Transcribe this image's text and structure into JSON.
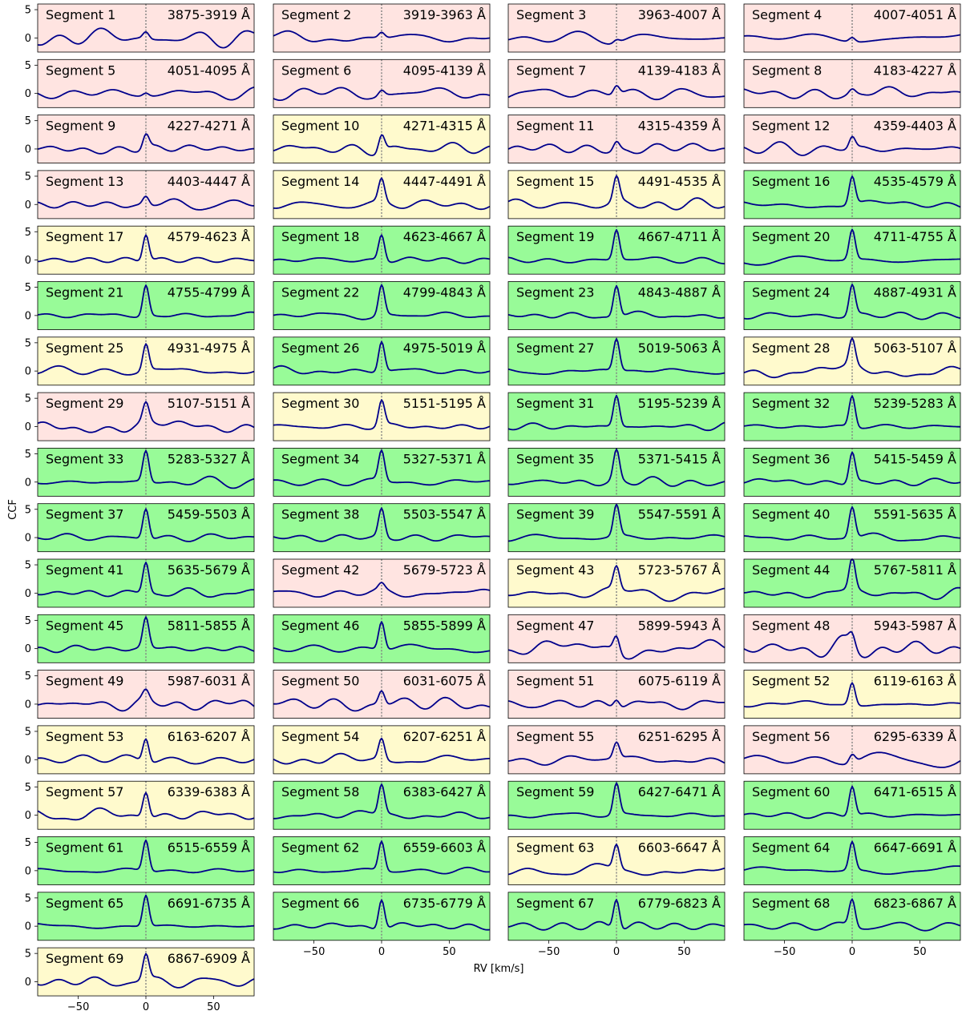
{
  "figure": {
    "xlabel": "RV [km/s]",
    "ylabel": "CCF"
  },
  "colors": {
    "line": "#00008b",
    "zero_line": "#808080",
    "good": "#98fb98",
    "marginal": "#fffacd",
    "poor": "#ffe4e1"
  },
  "chart_data": {
    "type": "line",
    "title": "",
    "xlabel": "RV [km/s]",
    "ylabel": "CCF",
    "xlim": [
      -80,
      80
    ],
    "ylim": [
      -2.5,
      6
    ],
    "xticks": [
      -50,
      0,
      50
    ],
    "yticks": [
      0,
      5
    ],
    "xtick_labels": [
      "−50",
      "0",
      "50"
    ],
    "ytick_labels": [
      "0",
      "5"
    ],
    "reference_line_x": 0,
    "grid": false,
    "legend": "none",
    "segments": [
      {
        "name": "Segment 1",
        "range": "3875-3919 Å",
        "quality": "poor",
        "peak": 1.2,
        "noise": 1.5
      },
      {
        "name": "Segment 2",
        "range": "3919-3963 Å",
        "quality": "poor",
        "peak": 1.0,
        "noise": 1.0
      },
      {
        "name": "Segment 3",
        "range": "3963-4007 Å",
        "quality": "poor",
        "peak": 0.6,
        "noise": 1.0
      },
      {
        "name": "Segment 4",
        "range": "4007-4051 Å",
        "quality": "poor",
        "peak": 0.8,
        "noise": 0.9
      },
      {
        "name": "Segment 5",
        "range": "4051-4095 Å",
        "quality": "poor",
        "peak": 0.6,
        "noise": 1.1
      },
      {
        "name": "Segment 6",
        "range": "4095-4139 Å",
        "quality": "poor",
        "peak": 1.0,
        "noise": 1.0
      },
      {
        "name": "Segment 7",
        "range": "4139-4183 Å",
        "quality": "poor",
        "peak": 1.6,
        "noise": 1.2
      },
      {
        "name": "Segment 8",
        "range": "4183-4227 Å",
        "quality": "poor",
        "peak": 0.8,
        "noise": 1.0
      },
      {
        "name": "Segment 9",
        "range": "4227-4271 Å",
        "quality": "poor",
        "peak": 2.5,
        "noise": 1.0
      },
      {
        "name": "Segment 10",
        "range": "4271-4315 Å",
        "quality": "marginal",
        "peak": 3.0,
        "noise": 1.0
      },
      {
        "name": "Segment 11",
        "range": "4315-4359 Å",
        "quality": "poor",
        "peak": 1.5,
        "noise": 1.0
      },
      {
        "name": "Segment 12",
        "range": "4359-4403 Å",
        "quality": "poor",
        "peak": 2.0,
        "noise": 0.9
      },
      {
        "name": "Segment 13",
        "range": "4403-4447 Å",
        "quality": "poor",
        "peak": 1.5,
        "noise": 0.9
      },
      {
        "name": "Segment 14",
        "range": "4447-4491 Å",
        "quality": "marginal",
        "peak": 4.0,
        "noise": 0.9
      },
      {
        "name": "Segment 15",
        "range": "4491-4535 Å",
        "quality": "marginal",
        "peak": 4.3,
        "noise": 1.0
      },
      {
        "name": "Segment 16",
        "range": "4535-4579 Å",
        "quality": "good",
        "peak": 5.0,
        "noise": 0.8
      },
      {
        "name": "Segment 17",
        "range": "4579-4623 Å",
        "quality": "marginal",
        "peak": 4.8,
        "noise": 0.7
      },
      {
        "name": "Segment 18",
        "range": "4623-4667 Å",
        "quality": "good",
        "peak": 4.6,
        "noise": 0.6
      },
      {
        "name": "Segment 19",
        "range": "4667-4711 Å",
        "quality": "good",
        "peak": 5.3,
        "noise": 0.6
      },
      {
        "name": "Segment 20",
        "range": "4711-4755 Å",
        "quality": "good",
        "peak": 5.3,
        "noise": 0.8
      },
      {
        "name": "Segment 21",
        "range": "4755-4799 Å",
        "quality": "good",
        "peak": 5.5,
        "noise": 0.7
      },
      {
        "name": "Segment 22",
        "range": "4799-4843 Å",
        "quality": "good",
        "peak": 5.3,
        "noise": 0.6
      },
      {
        "name": "Segment 23",
        "range": "4843-4887 Å",
        "quality": "good",
        "peak": 5.5,
        "noise": 0.6
      },
      {
        "name": "Segment 24",
        "range": "4887-4931 Å",
        "quality": "good",
        "peak": 5.4,
        "noise": 0.7
      },
      {
        "name": "Segment 25",
        "range": "4931-4975 Å",
        "quality": "marginal",
        "peak": 4.7,
        "noise": 1.0
      },
      {
        "name": "Segment 26",
        "range": "4975-5019 Å",
        "quality": "good",
        "peak": 5.4,
        "noise": 0.8
      },
      {
        "name": "Segment 27",
        "range": "5019-5063 Å",
        "quality": "good",
        "peak": 5.6,
        "noise": 0.6
      },
      {
        "name": "Segment 28",
        "range": "5063-5107 Å",
        "quality": "marginal",
        "peak": 4.5,
        "noise": 1.1
      },
      {
        "name": "Segment 29",
        "range": "5107-5151 Å",
        "quality": "poor",
        "peak": 3.2,
        "noise": 1.0
      },
      {
        "name": "Segment 30",
        "range": "5151-5195 Å",
        "quality": "marginal",
        "peak": 4.5,
        "noise": 0.8
      },
      {
        "name": "Segment 31",
        "range": "5195-5239 Å",
        "quality": "good",
        "peak": 5.5,
        "noise": 0.7
      },
      {
        "name": "Segment 32",
        "range": "5239-5283 Å",
        "quality": "good",
        "peak": 5.5,
        "noise": 0.6
      },
      {
        "name": "Segment 33",
        "range": "5283-5327 Å",
        "quality": "good",
        "peak": 5.5,
        "noise": 0.8
      },
      {
        "name": "Segment 34",
        "range": "5327-5371 Å",
        "quality": "good",
        "peak": 5.3,
        "noise": 0.7
      },
      {
        "name": "Segment 35",
        "range": "5371-5415 Å",
        "quality": "good",
        "peak": 5.3,
        "noise": 0.8
      },
      {
        "name": "Segment 36",
        "range": "5415-5459 Å",
        "quality": "good",
        "peak": 5.4,
        "noise": 0.7
      },
      {
        "name": "Segment 37",
        "range": "5459-5503 Å",
        "quality": "good",
        "peak": 5.4,
        "noise": 0.6
      },
      {
        "name": "Segment 38",
        "range": "5503-5547 Å",
        "quality": "good",
        "peak": 5.0,
        "noise": 0.6
      },
      {
        "name": "Segment 39",
        "range": "5547-5591 Å",
        "quality": "good",
        "peak": 5.5,
        "noise": 0.7
      },
      {
        "name": "Segment 40",
        "range": "5591-5635 Å",
        "quality": "good",
        "peak": 5.5,
        "noise": 0.6
      },
      {
        "name": "Segment 41",
        "range": "5635-5679 Å",
        "quality": "good",
        "peak": 5.5,
        "noise": 0.8
      },
      {
        "name": "Segment 42",
        "range": "5679-5723 Å",
        "quality": "poor",
        "peak": 1.0,
        "noise": 1.2
      },
      {
        "name": "Segment 43",
        "range": "5723-5767 Å",
        "quality": "marginal",
        "peak": 4.0,
        "noise": 1.1
      },
      {
        "name": "Segment 44",
        "range": "5767-5811 Å",
        "quality": "good",
        "peak": 5.5,
        "noise": 1.0
      },
      {
        "name": "Segment 45",
        "range": "5811-5855 Å",
        "quality": "good",
        "peak": 5.3,
        "noise": 0.6
      },
      {
        "name": "Segment 46",
        "range": "5855-5899 Å",
        "quality": "good",
        "peak": 5.0,
        "noise": 0.8
      },
      {
        "name": "Segment 47",
        "range": "5899-5943 Å",
        "quality": "poor",
        "peak": 2.8,
        "noise": 1.3
      },
      {
        "name": "Segment 48",
        "range": "5943-5987 Å",
        "quality": "poor",
        "peak": 2.0,
        "noise": 1.5
      },
      {
        "name": "Segment 49",
        "range": "5987-6031 Å",
        "quality": "poor",
        "peak": 1.5,
        "noise": 1.3
      },
      {
        "name": "Segment 50",
        "range": "6031-6075 Å",
        "quality": "poor",
        "peak": 2.5,
        "noise": 1.2
      },
      {
        "name": "Segment 51",
        "range": "6075-6119 Å",
        "quality": "poor",
        "peak": 1.5,
        "noise": 1.0
      },
      {
        "name": "Segment 52",
        "range": "6119-6163 Å",
        "quality": "marginal",
        "peak": 4.0,
        "noise": 0.5
      },
      {
        "name": "Segment 53",
        "range": "6163-6207 Å",
        "quality": "marginal",
        "peak": 4.2,
        "noise": 0.9
      },
      {
        "name": "Segment 54",
        "range": "6207-6251 Å",
        "quality": "marginal",
        "peak": 3.7,
        "noise": 0.9
      },
      {
        "name": "Segment 55",
        "range": "6251-6295 Å",
        "quality": "poor",
        "peak": 2.8,
        "noise": 1.3
      },
      {
        "name": "Segment 56",
        "range": "6295-6339 Å",
        "quality": "poor",
        "peak": 1.5,
        "noise": 1.3
      },
      {
        "name": "Segment 57",
        "range": "6339-6383 Å",
        "quality": "marginal",
        "peak": 4.5,
        "noise": 1.0
      },
      {
        "name": "Segment 58",
        "range": "6383-6427 Å",
        "quality": "good",
        "peak": 5.2,
        "noise": 0.8
      },
      {
        "name": "Segment 59",
        "range": "6427-6471 Å",
        "quality": "good",
        "peak": 5.5,
        "noise": 0.6
      },
      {
        "name": "Segment 60",
        "range": "6471-6515 Å",
        "quality": "good",
        "peak": 5.3,
        "noise": 0.5
      },
      {
        "name": "Segment 61",
        "range": "6515-6559 Å",
        "quality": "good",
        "peak": 5.5,
        "noise": 0.5
      },
      {
        "name": "Segment 62",
        "range": "6559-6603 Å",
        "quality": "good",
        "peak": 5.2,
        "noise": 0.6
      },
      {
        "name": "Segment 63",
        "range": "6603-6647 Å",
        "quality": "marginal",
        "peak": 4.3,
        "noise": 1.0
      },
      {
        "name": "Segment 64",
        "range": "6647-6691 Å",
        "quality": "good",
        "peak": 5.0,
        "noise": 0.6
      },
      {
        "name": "Segment 65",
        "range": "6691-6735 Å",
        "quality": "good",
        "peak": 5.5,
        "noise": 0.5
      },
      {
        "name": "Segment 66",
        "range": "6735-6779 Å",
        "quality": "good",
        "peak": 5.4,
        "noise": 0.6
      },
      {
        "name": "Segment 67",
        "range": "6779-6823 Å",
        "quality": "good",
        "peak": 5.5,
        "noise": 0.6
      },
      {
        "name": "Segment 68",
        "range": "6823-6867 Å",
        "quality": "good",
        "peak": 4.8,
        "noise": 0.7
      },
      {
        "name": "Segment 69",
        "range": "6867-6909 Å",
        "quality": "marginal",
        "peak": 4.5,
        "noise": 1.0
      }
    ]
  }
}
